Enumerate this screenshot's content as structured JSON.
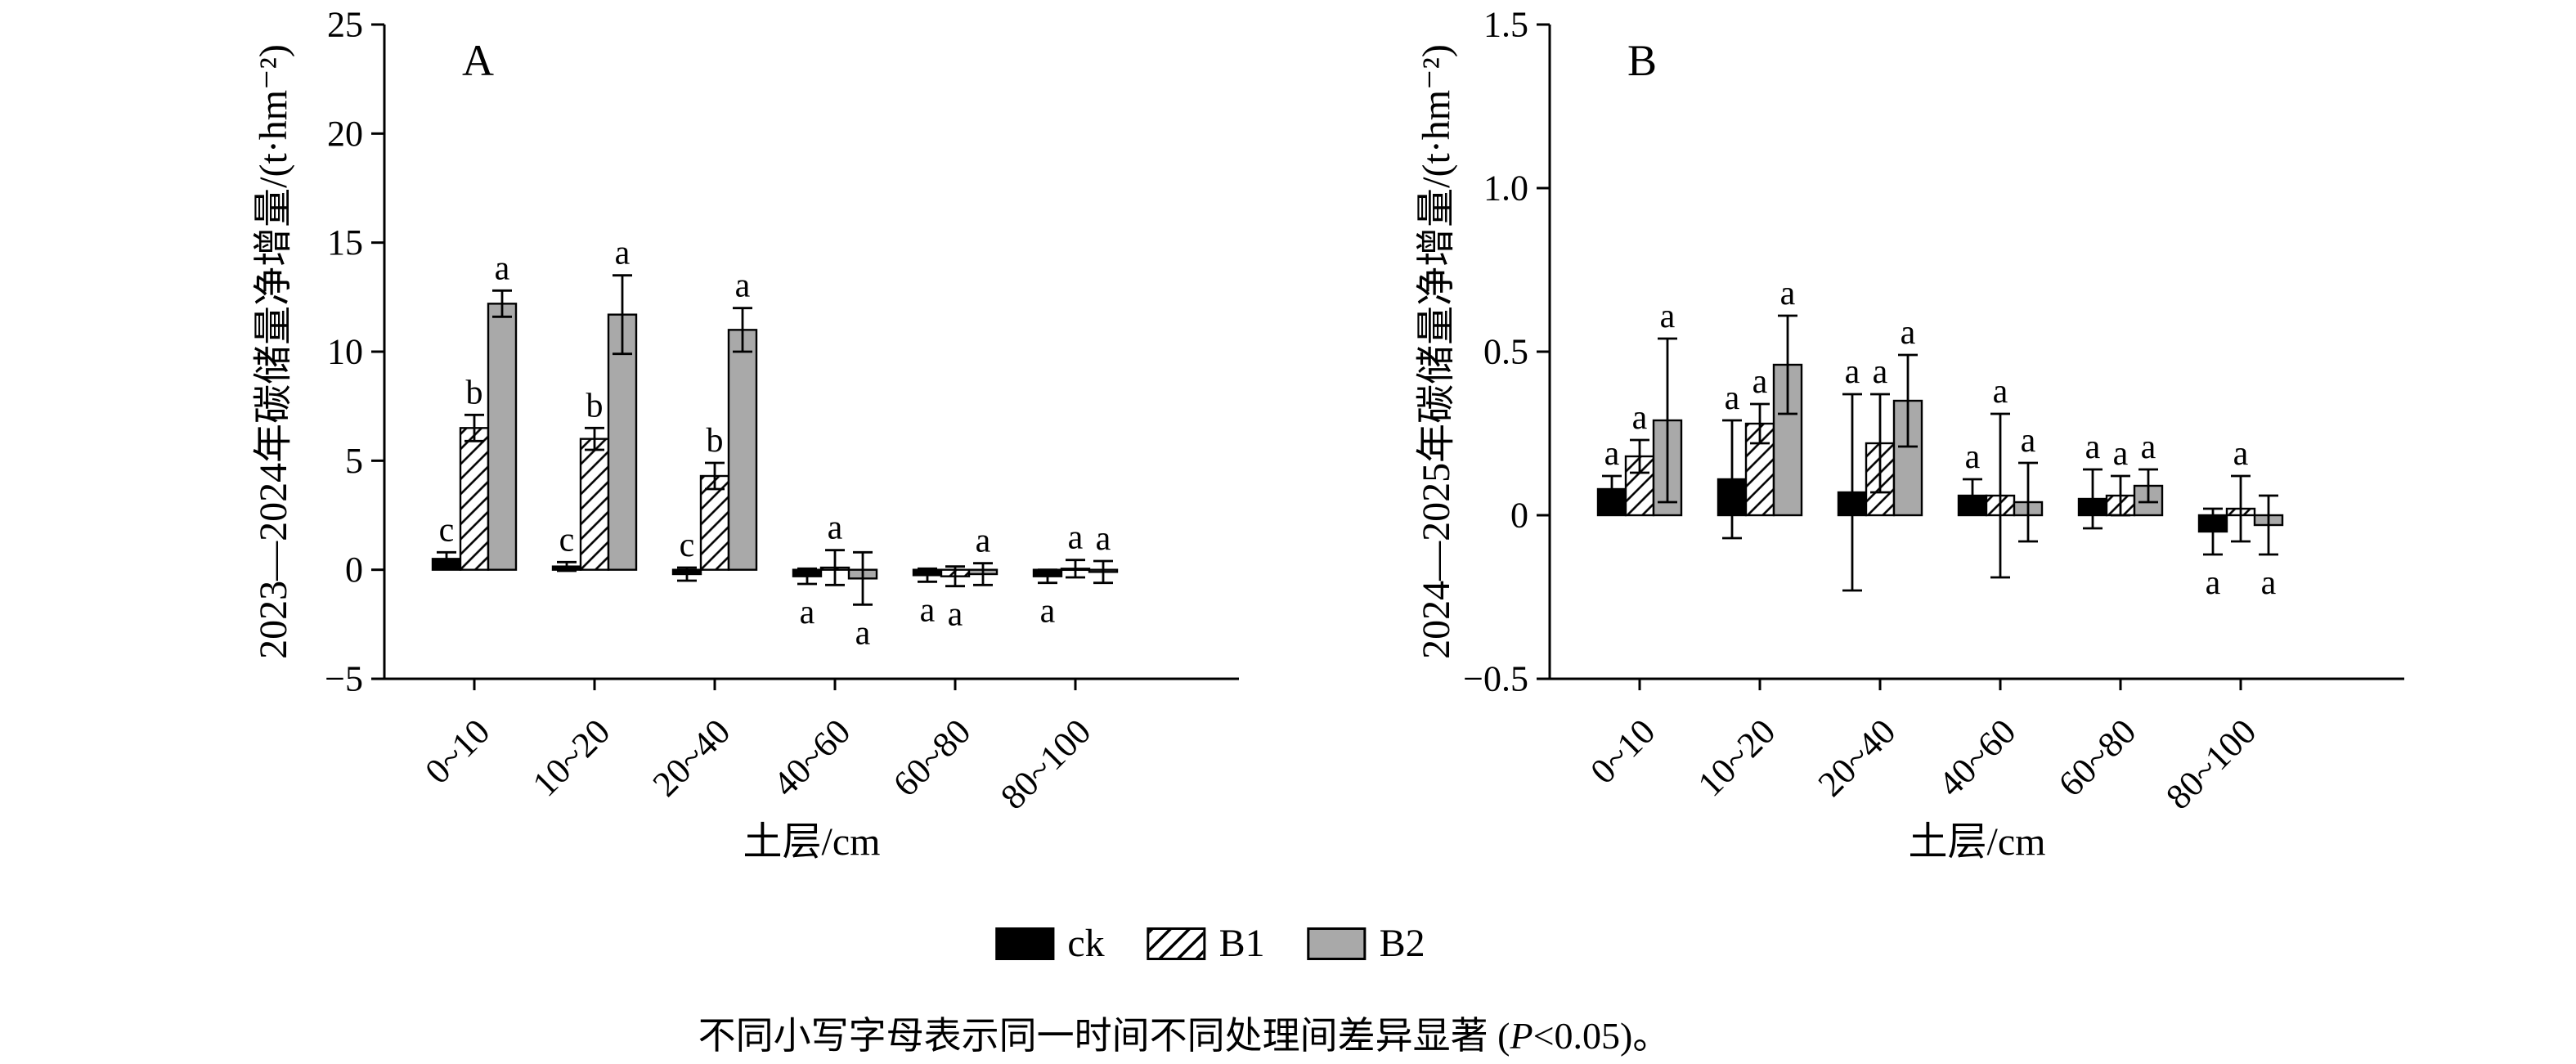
{
  "figure": {
    "background": "#ffffff",
    "colors": {
      "bar_ck": "#000000",
      "bar_b1_fill": "#ffffff",
      "bar_b1_hatch": "#000000",
      "bar_b2": "#a9a9a9",
      "axis": "#000000",
      "error_bar": "#000000"
    },
    "legend": {
      "items": [
        {
          "label": "ck",
          "swatch": "black"
        },
        {
          "label": "B1",
          "swatch": "hatch"
        },
        {
          "label": "B2",
          "swatch": "gray"
        }
      ]
    },
    "caption": {
      "part1": "不同小写字母表示同一时间不同处理间差异显著 (",
      "italic": "P",
      "part2": "<0.05)。"
    }
  },
  "chart_data": [
    {
      "type": "bar",
      "panel_label": "A",
      "ylabel": "2023—2024年碳储量净增量/(t·hm⁻²)",
      "xlabel": "土层/cm",
      "categories": [
        "0~10",
        "10~20",
        "20~40",
        "40~60",
        "60~80",
        "80~100"
      ],
      "ylim": [
        -5,
        25
      ],
      "yticks": [
        {
          "v": -5,
          "label": "−5"
        },
        {
          "v": 0,
          "label": "0"
        },
        {
          "v": 5,
          "label": "5"
        },
        {
          "v": 10,
          "label": "10"
        },
        {
          "v": 15,
          "label": "15"
        },
        {
          "v": 20,
          "label": "20"
        },
        {
          "v": 25,
          "label": "25"
        }
      ],
      "series": [
        {
          "name": "ck",
          "fill_key": "ck",
          "values": [
            0.5,
            0.15,
            -0.2,
            -0.3,
            -0.25,
            -0.3
          ],
          "errors": [
            0.3,
            0.2,
            0.3,
            0.35,
            0.3,
            0.3
          ],
          "letters": [
            "c",
            "c",
            "c",
            "a",
            "a",
            "a"
          ],
          "letter_pos": [
            "above",
            "above",
            "above",
            "below",
            "below",
            "below"
          ]
        },
        {
          "name": "B1",
          "fill_key": "b1",
          "values": [
            6.5,
            6.0,
            4.3,
            0.1,
            -0.3,
            0.05
          ],
          "errors": [
            0.6,
            0.5,
            0.6,
            0.8,
            0.45,
            0.4
          ],
          "letters": [
            "b",
            "b",
            "b",
            "a",
            "a",
            "a"
          ],
          "letter_pos": [
            "above",
            "above",
            "above",
            "above",
            "below",
            "above"
          ]
        },
        {
          "name": "B2",
          "fill_key": "b2",
          "values": [
            12.2,
            11.7,
            11.0,
            -0.4,
            -0.2,
            -0.1
          ],
          "errors": [
            0.6,
            1.8,
            1.0,
            1.2,
            0.5,
            0.5
          ],
          "letters": [
            "a",
            "a",
            "a",
            "a",
            "a",
            "a"
          ],
          "letter_pos": [
            "above",
            "above",
            "above",
            "below",
            "above",
            "above"
          ]
        }
      ]
    },
    {
      "type": "bar",
      "panel_label": "B",
      "ylabel": "2024—2025年碳储量净增量/(t·hm⁻²)",
      "xlabel": "土层/cm",
      "categories": [
        "0~10",
        "10~20",
        "20~40",
        "40~60",
        "60~80",
        "80~100"
      ],
      "ylim": [
        -0.5,
        1.5
      ],
      "yticks": [
        {
          "v": -0.5,
          "label": "−0.5"
        },
        {
          "v": 0,
          "label": "0"
        },
        {
          "v": 0.5,
          "label": "0.5"
        },
        {
          "v": 1.0,
          "label": "1.0"
        },
        {
          "v": 1.5,
          "label": "1.5"
        }
      ],
      "series": [
        {
          "name": "ck",
          "fill_key": "ck",
          "values": [
            0.08,
            0.11,
            0.07,
            0.06,
            0.05,
            -0.05
          ],
          "errors": [
            0.04,
            0.18,
            0.3,
            0.05,
            0.09,
            0.07
          ],
          "letters": [
            "a",
            "a",
            "a",
            "a",
            "a",
            "a"
          ],
          "letter_pos": [
            "above",
            "above",
            "above",
            "above",
            "above",
            "below"
          ]
        },
        {
          "name": "B1",
          "fill_key": "b1",
          "values": [
            0.18,
            0.28,
            0.22,
            0.06,
            0.06,
            0.02
          ],
          "errors": [
            0.05,
            0.06,
            0.15,
            0.25,
            0.06,
            0.1
          ],
          "letters": [
            "a",
            "a",
            "a",
            "a",
            "a",
            "a"
          ],
          "letter_pos": [
            "above",
            "above",
            "above",
            "above",
            "above",
            "above"
          ]
        },
        {
          "name": "B2",
          "fill_key": "b2",
          "values": [
            0.29,
            0.46,
            0.35,
            0.04,
            0.09,
            -0.03
          ],
          "errors": [
            0.25,
            0.15,
            0.14,
            0.12,
            0.05,
            0.09
          ],
          "letters": [
            "a",
            "a",
            "a",
            "a",
            "a",
            "a"
          ],
          "letter_pos": [
            "above",
            "above",
            "above",
            "above",
            "above",
            "below"
          ]
        }
      ]
    }
  ]
}
